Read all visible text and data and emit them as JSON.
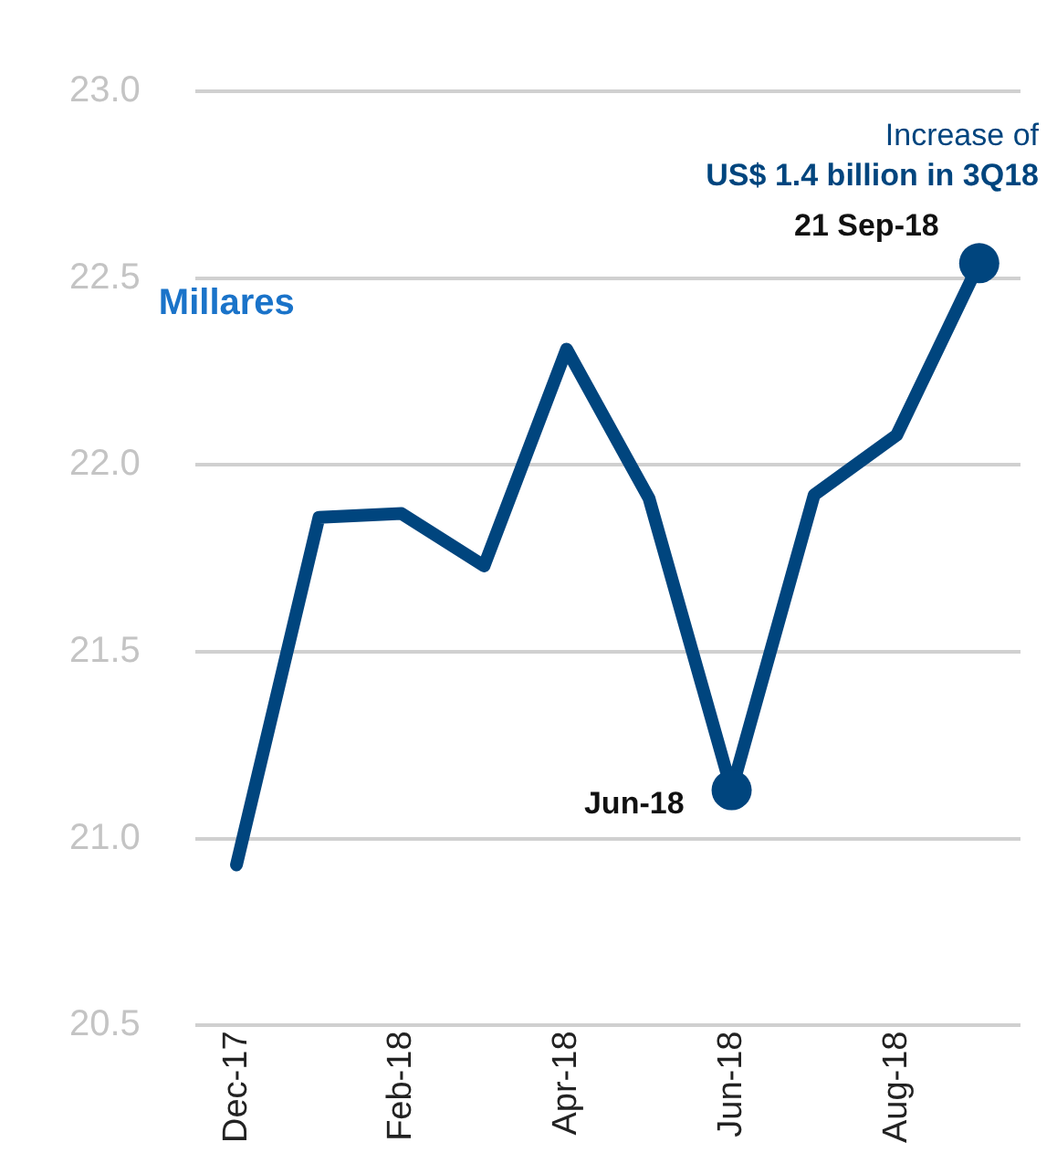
{
  "chart_data": {
    "type": "line",
    "categories": [
      "Dec-17",
      null,
      "Feb-18",
      null,
      "Apr-18",
      null,
      "Jun-18",
      null,
      "Aug-18",
      null
    ],
    "series": [
      {
        "color": "#00457e",
        "values": [
          20.93,
          21.86,
          21.87,
          21.73,
          22.31,
          21.91,
          21.13,
          21.92,
          22.08,
          22.54
        ]
      }
    ],
    "ylim": [
      20.5,
      23.0
    ],
    "yticks": [
      {
        "value": 20.5,
        "label": "20.5"
      },
      {
        "value": 21,
        "label": "21.0"
      },
      {
        "value": 21.5,
        "label": "21.5"
      },
      {
        "value": 22,
        "label": "22.0"
      },
      {
        "value": 22.5,
        "label": "22.5"
      },
      {
        "value": 23,
        "label": "23.0"
      }
    ],
    "grid": "y",
    "legend": false,
    "annotations": [
      "Increase of",
      "US$ 1.4 billion in 3Q18",
      "Millares",
      {
        "text": "Jun-18",
        "x": "Jun-18",
        "y": 21.13
      },
      "21 Sep-18"
    ]
  }
}
